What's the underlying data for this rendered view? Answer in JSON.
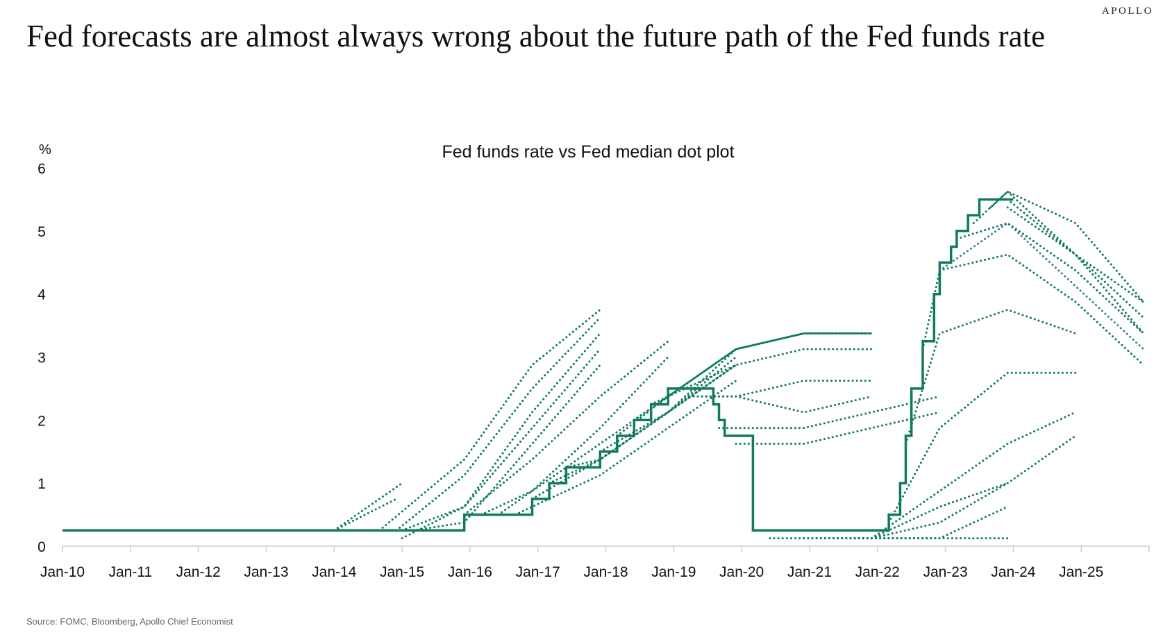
{
  "header": {
    "brand": "APOLLO",
    "title": "Fed forecasts are almost always wrong about the future path of the Fed funds rate"
  },
  "footer": {
    "source": "Source: FOMC, Bloomberg, Apollo Chief Economist"
  },
  "chart_data": {
    "type": "line",
    "title": "Fed funds rate vs Fed median dot plot",
    "ylabel": "%",
    "xlabel": "",
    "ylim": [
      0,
      6
    ],
    "xlim": [
      "2010-01",
      "2026-01"
    ],
    "y_ticks": [
      "0",
      "1",
      "2",
      "3",
      "4",
      "5",
      "6"
    ],
    "x_ticks": [
      {
        "date": "2010-01",
        "label": "Jan-10"
      },
      {
        "date": "2011-01",
        "label": "Jan-11"
      },
      {
        "date": "2012-01",
        "label": "Jan-12"
      },
      {
        "date": "2013-01",
        "label": "Jan-13"
      },
      {
        "date": "2014-01",
        "label": "Jan-14"
      },
      {
        "date": "2015-01",
        "label": "Jan-15"
      },
      {
        "date": "2016-01",
        "label": "Jan-16"
      },
      {
        "date": "2017-01",
        "label": "Jan-17"
      },
      {
        "date": "2018-01",
        "label": "Jan-18"
      },
      {
        "date": "2019-01",
        "label": "Jan-19"
      },
      {
        "date": "2020-01",
        "label": "Jan-20"
      },
      {
        "date": "2021-01",
        "label": "Jan-21"
      },
      {
        "date": "2022-01",
        "label": "Jan-22"
      },
      {
        "date": "2023-01",
        "label": "Jan-23"
      },
      {
        "date": "2024-01",
        "label": "Jan-24"
      },
      {
        "date": "2025-01",
        "label": "Jan-25"
      }
    ],
    "grid": false,
    "colors": {
      "fed_funds": "#0f7a5f",
      "projection": "#0f7a5f",
      "projection_alt": "#3a7f9a"
    },
    "fed_funds_rate": [
      [
        "2010-01",
        0.25
      ],
      [
        "2015-12",
        0.25
      ],
      [
        "2015-12",
        0.5
      ],
      [
        "2016-12",
        0.5
      ],
      [
        "2016-12",
        0.75
      ],
      [
        "2017-03",
        0.75
      ],
      [
        "2017-03",
        1.0
      ],
      [
        "2017-06",
        1.0
      ],
      [
        "2017-06",
        1.25
      ],
      [
        "2017-12",
        1.25
      ],
      [
        "2017-12",
        1.5
      ],
      [
        "2018-03",
        1.5
      ],
      [
        "2018-03",
        1.75
      ],
      [
        "2018-06",
        1.75
      ],
      [
        "2018-06",
        2.0
      ],
      [
        "2018-09",
        2.0
      ],
      [
        "2018-09",
        2.25
      ],
      [
        "2018-12",
        2.25
      ],
      [
        "2018-12",
        2.5
      ],
      [
        "2019-08",
        2.5
      ],
      [
        "2019-08",
        2.25
      ],
      [
        "2019-09",
        2.25
      ],
      [
        "2019-09",
        2.0
      ],
      [
        "2019-10",
        2.0
      ],
      [
        "2019-10",
        1.75
      ],
      [
        "2020-03",
        1.75
      ],
      [
        "2020-03",
        1.25
      ],
      [
        "2020-03",
        0.25
      ],
      [
        "2022-03",
        0.25
      ],
      [
        "2022-03",
        0.5
      ],
      [
        "2022-05",
        0.5
      ],
      [
        "2022-05",
        1.0
      ],
      [
        "2022-06",
        1.0
      ],
      [
        "2022-06",
        1.75
      ],
      [
        "2022-07",
        1.75
      ],
      [
        "2022-07",
        2.5
      ],
      [
        "2022-09",
        2.5
      ],
      [
        "2022-09",
        3.25
      ],
      [
        "2022-11",
        3.25
      ],
      [
        "2022-11",
        4.0
      ],
      [
        "2022-12",
        4.0
      ],
      [
        "2022-12",
        4.5
      ],
      [
        "2023-02",
        4.5
      ],
      [
        "2023-02",
        4.75
      ],
      [
        "2023-03",
        4.75
      ],
      [
        "2023-03",
        5.0
      ],
      [
        "2023-05",
        5.0
      ],
      [
        "2023-05",
        5.25
      ],
      [
        "2023-07",
        5.25
      ],
      [
        "2023-07",
        5.5
      ],
      [
        "2024-01",
        5.5
      ]
    ],
    "dot_plot_projections": [
      {
        "points": [
          [
            "2014-01",
            0.25
          ],
          [
            "2014-12",
            0.75
          ]
        ]
      },
      {
        "points": [
          [
            "2014-01",
            0.25
          ],
          [
            "2015-01",
            1.0
          ]
        ]
      },
      {
        "points": [
          [
            "2014-09",
            0.25
          ],
          [
            "2015-12",
            1.375
          ],
          [
            "2016-12",
            2.875
          ],
          [
            "2017-12",
            3.75
          ]
        ]
      },
      {
        "points": [
          [
            "2014-12",
            0.25
          ],
          [
            "2015-12",
            1.125
          ],
          [
            "2016-12",
            2.5
          ],
          [
            "2017-12",
            3.625
          ]
        ]
      },
      {
        "points": [
          [
            "2015-01",
            0.25
          ],
          [
            "2015-12",
            0.625
          ],
          [
            "2016-12",
            1.875
          ],
          [
            "2017-12",
            3.125
          ]
        ]
      },
      {
        "points": [
          [
            "2015-03",
            0.25
          ],
          [
            "2015-12",
            0.375
          ],
          [
            "2016-12",
            1.625
          ],
          [
            "2017-12",
            2.875
          ]
        ]
      },
      {
        "points": [
          [
            "2015-01",
            0.125
          ],
          [
            "2015-12",
            0.625
          ],
          [
            "2016-12",
            2.125
          ],
          [
            "2017-12",
            3.375
          ]
        ]
      },
      {
        "points": [
          [
            "2015-12",
            0.5
          ],
          [
            "2016-12",
            1.375
          ],
          [
            "2017-12",
            2.375
          ],
          [
            "2018-12",
            3.25
          ]
        ]
      },
      {
        "points": [
          [
            "2016-03",
            0.5
          ],
          [
            "2016-12",
            0.875
          ],
          [
            "2017-12",
            1.875
          ],
          [
            "2018-12",
            3.0
          ]
        ]
      },
      {
        "points": [
          [
            "2016-06",
            0.5
          ],
          [
            "2016-12",
            0.875
          ],
          [
            "2017-12",
            1.625
          ],
          [
            "2018-12",
            2.375
          ]
        ]
      },
      {
        "points": [
          [
            "2016-09",
            0.5
          ],
          [
            "2016-12",
            0.625
          ],
          [
            "2017-12",
            1.125
          ],
          [
            "2018-12",
            1.875
          ],
          [
            "2019-12",
            2.625
          ]
        ]
      },
      {
        "points": [
          [
            "2016-12",
            0.75
          ],
          [
            "2017-12",
            1.375
          ],
          [
            "2018-12",
            2.125
          ],
          [
            "2019-12",
            2.875
          ]
        ]
      },
      {
        "points": [
          [
            "2017-03",
            1.0
          ],
          [
            "2017-12",
            1.375
          ],
          [
            "2018-12",
            2.125
          ],
          [
            "2019-12",
            3.0
          ]
        ]
      },
      {
        "points": [
          [
            "2017-06",
            1.25
          ],
          [
            "2017-12",
            1.375
          ],
          [
            "2018-12",
            2.125
          ],
          [
            "2019-12",
            2.875
          ]
        ]
      },
      {
        "points": [
          [
            "2017-12",
            1.5
          ],
          [
            "2018-12",
            2.125
          ],
          [
            "2019-12",
            3.125
          ],
          [
            "2020-12",
            3.375
          ]
        ]
      },
      {
        "points": [
          [
            "2018-03",
            1.75
          ],
          [
            "2018-12",
            2.375
          ],
          [
            "2019-12",
            3.125
          ],
          [
            "2020-12",
            3.375
          ],
          [
            "2021-12",
            3.375
          ]
        ]
      },
      {
        "points": [
          [
            "2018-06",
            2.0
          ],
          [
            "2018-12",
            2.375
          ],
          [
            "2019-12",
            3.125
          ],
          [
            "2020-12",
            3.375
          ],
          [
            "2021-12",
            3.375
          ]
        ]
      },
      {
        "points": [
          [
            "2018-09",
            2.25
          ],
          [
            "2018-12",
            2.375
          ],
          [
            "2019-12",
            3.125
          ],
          [
            "2020-12",
            3.375
          ],
          [
            "2021-12",
            3.375
          ]
        ]
      },
      {
        "points": [
          [
            "2018-12",
            2.375
          ],
          [
            "2019-12",
            2.875
          ],
          [
            "2020-12",
            3.125
          ],
          [
            "2021-12",
            3.125
          ]
        ]
      },
      {
        "points": [
          [
            "2019-03",
            2.375
          ],
          [
            "2019-12",
            2.375
          ],
          [
            "2020-12",
            2.625
          ],
          [
            "2021-12",
            2.625
          ]
        ]
      },
      {
        "points": [
          [
            "2019-06",
            2.375
          ],
          [
            "2019-12",
            2.375
          ],
          [
            "2020-12",
            2.125
          ],
          [
            "2021-12",
            2.375
          ]
        ]
      },
      {
        "points": [
          [
            "2019-09",
            1.875
          ],
          [
            "2019-12",
            1.875
          ],
          [
            "2020-12",
            1.875
          ],
          [
            "2021-12",
            2.125
          ],
          [
            "2022-12",
            2.375
          ]
        ]
      },
      {
        "points": [
          [
            "2019-12",
            1.625
          ],
          [
            "2020-12",
            1.625
          ],
          [
            "2021-12",
            1.875
          ],
          [
            "2022-12",
            2.125
          ]
        ]
      },
      {
        "points": [
          [
            "2020-06",
            0.125
          ],
          [
            "2020-12",
            0.125
          ],
          [
            "2021-12",
            0.125
          ],
          [
            "2022-12",
            0.125
          ]
        ]
      },
      {
        "points": [
          [
            "2020-12",
            0.125
          ],
          [
            "2021-12",
            0.125
          ],
          [
            "2022-12",
            0.125
          ],
          [
            "2023-12",
            0.125
          ]
        ]
      },
      {
        "points": [
          [
            "2021-03",
            0.125
          ],
          [
            "2021-12",
            0.125
          ],
          [
            "2022-12",
            0.125
          ],
          [
            "2023-12",
            0.625
          ]
        ]
      },
      {
        "points": [
          [
            "2021-06",
            0.125
          ],
          [
            "2021-12",
            0.125
          ],
          [
            "2022-12",
            0.625
          ],
          [
            "2023-12",
            1.0
          ]
        ]
      },
      {
        "points": [
          [
            "2021-09",
            0.125
          ],
          [
            "2021-12",
            0.125
          ],
          [
            "2022-12",
            0.375
          ],
          [
            "2023-12",
            1.0
          ],
          [
            "2024-12",
            1.75
          ]
        ]
      },
      {
        "points": [
          [
            "2021-12",
            0.125
          ],
          [
            "2022-12",
            0.875
          ],
          [
            "2023-12",
            1.625
          ],
          [
            "2024-12",
            2.125
          ]
        ]
      },
      {
        "points": [
          [
            "2022-03",
            0.375
          ],
          [
            "2022-12",
            1.875
          ],
          [
            "2023-12",
            2.75
          ],
          [
            "2024-12",
            2.75
          ]
        ]
      },
      {
        "points": [
          [
            "2022-06",
            1.625
          ],
          [
            "2022-12",
            3.375
          ],
          [
            "2023-12",
            3.75
          ],
          [
            "2024-12",
            3.375
          ]
        ]
      },
      {
        "points": [
          [
            "2022-09",
            3.125
          ],
          [
            "2022-12",
            4.375
          ],
          [
            "2023-12",
            4.625
          ],
          [
            "2024-12",
            3.875
          ],
          [
            "2025-12",
            2.875
          ]
        ]
      },
      {
        "points": [
          [
            "2022-12",
            4.375
          ],
          [
            "2023-12",
            5.125
          ],
          [
            "2024-12",
            4.125
          ],
          [
            "2025-12",
            3.125
          ]
        ],
        "color": "projection_alt"
      },
      {
        "points": [
          [
            "2023-03",
            4.875
          ],
          [
            "2023-12",
            5.125
          ],
          [
            "2024-12",
            4.375
          ],
          [
            "2025-12",
            3.375
          ]
        ]
      },
      {
        "points": [
          [
            "2023-06",
            5.125
          ],
          [
            "2023-12",
            5.625
          ],
          [
            "2024-12",
            4.625
          ],
          [
            "2025-12",
            3.375
          ]
        ]
      },
      {
        "points": [
          [
            "2023-09",
            5.375
          ],
          [
            "2023-12",
            5.625
          ],
          [
            "2024-12",
            5.125
          ],
          [
            "2025-12",
            3.875
          ]
        ]
      },
      {
        "points": [
          [
            "2023-12",
            5.375
          ],
          [
            "2024-12",
            4.625
          ],
          [
            "2025-12",
            3.625
          ]
        ]
      },
      {
        "points": [
          [
            "2023-12",
            5.5
          ],
          [
            "2024-12",
            4.625
          ],
          [
            "2025-12",
            3.875
          ]
        ]
      }
    ]
  }
}
